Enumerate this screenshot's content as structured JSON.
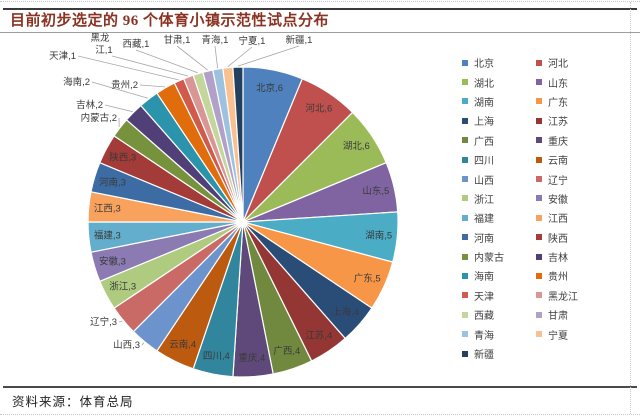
{
  "header": {
    "title": "目前初步选定的 96 个体育小镇示范性试点分布",
    "title_color": "#8A3323"
  },
  "footer": {
    "source": "资料来源：体育总局"
  },
  "chart_data": {
    "type": "pie",
    "title": "目前初步选定的 96 个体育小镇示范性试点分布",
    "total": 96,
    "legend_position": "right",
    "legend_columns": 2,
    "start_angle": "top",
    "direction": "clockwise",
    "categories": [
      "北京",
      "河北",
      "湖北",
      "山东",
      "湖南",
      "广东",
      "上海",
      "江苏",
      "广西",
      "重庆",
      "四川",
      "云南",
      "山西",
      "辽宁",
      "浙江",
      "安徽",
      "福建",
      "江西",
      "河南",
      "陕西",
      "内蒙古",
      "吉林",
      "海南",
      "贵州",
      "天津",
      "黑龙江",
      "西藏",
      "甘肃",
      "青海",
      "宁夏",
      "新疆"
    ],
    "values": [
      6,
      6,
      6,
      5,
      5,
      5,
      4,
      4,
      4,
      4,
      4,
      4,
      3,
      3,
      3,
      3,
      3,
      3,
      3,
      3,
      2,
      2,
      2,
      2,
      1,
      1,
      1,
      1,
      1,
      1,
      1
    ],
    "labels": [
      "北京,6",
      "河北,6",
      "湖北,6",
      "山东,5",
      "湖南,5",
      "广东,5",
      "上海,4",
      "江苏,4",
      "广西,4",
      "重庆,4",
      "四川,4",
      "云南,4",
      "山西,3",
      "辽宁,3",
      "浙江,3",
      "安徽,3",
      "福建,3",
      "江西,3",
      "河南,3",
      "陕西,3",
      "内蒙古,2",
      "吉林,2",
      "海南,2",
      "贵州,2",
      "天津,1",
      "黑龙江,1",
      "西藏,1",
      "甘肃,1",
      "青海,1",
      "宁夏,1",
      "新疆,1"
    ],
    "colors": [
      "#4E81BD",
      "#C0504D",
      "#9BBB59",
      "#8064A2",
      "#4BACC6",
      "#F79646",
      "#2A4D78",
      "#943634",
      "#71893F",
      "#5F497A",
      "#31859C",
      "#BC5A10",
      "#6D93CC",
      "#C96A66",
      "#AECB80",
      "#8C7AB2",
      "#62AECC",
      "#F8A25D",
      "#3D6CA5",
      "#A33B38",
      "#76923C",
      "#514077",
      "#2C93AC",
      "#E16C0C",
      "#D05A4B",
      "#DA9694",
      "#C3D69B",
      "#B1A0C7",
      "#9CC2E0",
      "#FAC08F",
      "#24405F"
    ],
    "label_text_color": "#3a3a3a"
  }
}
